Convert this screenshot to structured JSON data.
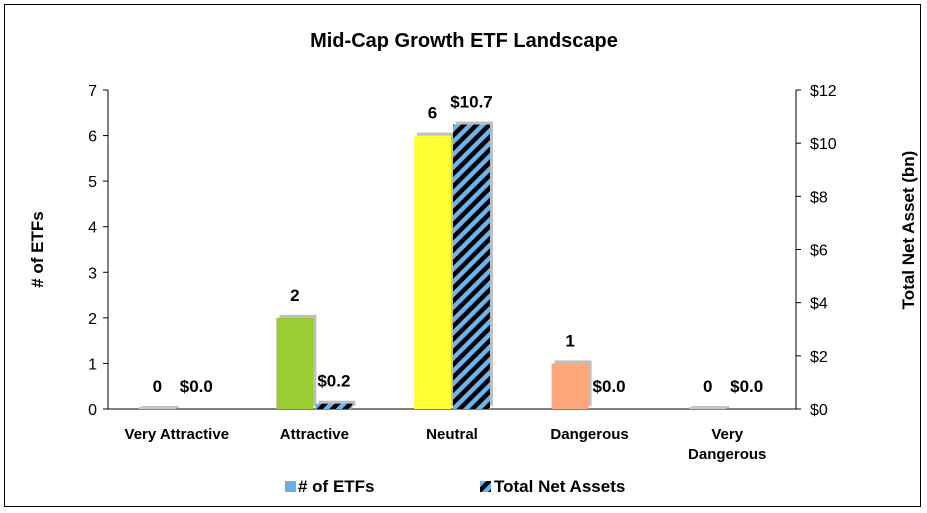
{
  "chart_data": {
    "type": "bar",
    "title": "Mid-Cap Growth ETF Landscape",
    "categories": [
      [
        "Very Attractive"
      ],
      [
        "Attractive"
      ],
      [
        "Neutral"
      ],
      [
        "Dangerous"
      ],
      [
        "Very",
        "Dangerous"
      ]
    ],
    "ylabel": "# of ETFs",
    "y2label": "Total Net Asset (bn)",
    "ylim": [
      0,
      7
    ],
    "y2lim": [
      0,
      12
    ],
    "yticks": [
      "0",
      "1",
      "2",
      "3",
      "4",
      "5",
      "6",
      "7"
    ],
    "y2ticks": [
      "$0",
      "$2",
      "$4",
      "$6",
      "$8",
      "$10",
      "$12"
    ],
    "series": [
      {
        "name": "# of ETFs",
        "axis": "left",
        "values": [
          0,
          2,
          6,
          1,
          0
        ],
        "labels": [
          "0",
          "2",
          "6",
          "1",
          "0"
        ],
        "colors": [
          "#c9c9c9",
          "#9acd32",
          "#ffff33",
          "#ffa67a",
          "#c9c9c9"
        ]
      },
      {
        "name": "Total Net Assets",
        "axis": "right",
        "values": [
          0.0,
          0.2,
          10.7,
          0.0,
          0.0
        ],
        "labels": [
          "$0.0",
          "$0.2",
          "$10.7",
          "$0.0",
          "$0.0"
        ],
        "pattern": "blue-black-diagonal-stripes"
      }
    ],
    "legend": "bottom",
    "grid": false,
    "colors": {
      "legend_etfs": "#6aaee6",
      "stripe_blue": "#6ab4f0",
      "stripe_black": "#000000"
    }
  }
}
